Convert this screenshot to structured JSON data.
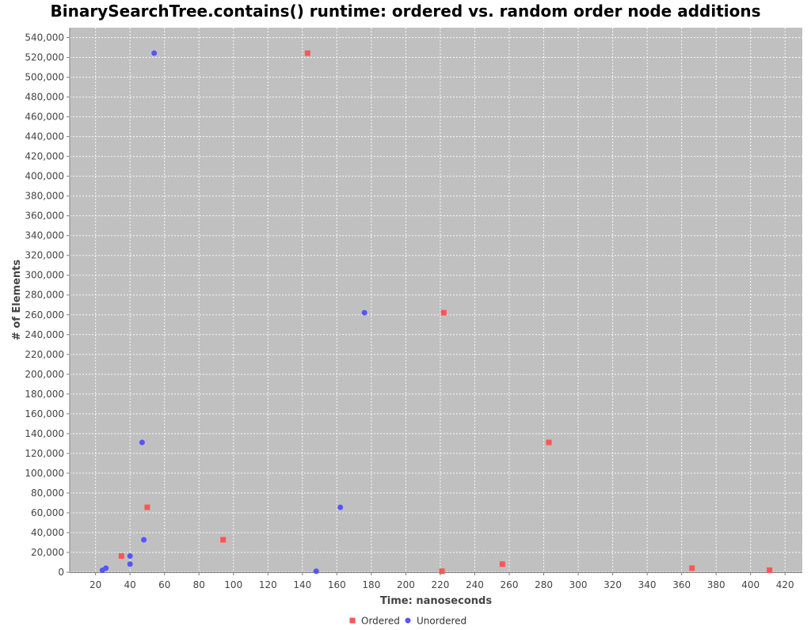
{
  "chart_data": {
    "type": "scatter",
    "title": "BinarySearchTree.contains() runtime: ordered vs. random order node additions",
    "xlabel": "Time: nanoseconds",
    "ylabel": "# of Elements",
    "xlim": [
      5,
      430
    ],
    "ylim": [
      0,
      550000
    ],
    "xticks": [
      20,
      40,
      60,
      80,
      100,
      120,
      140,
      160,
      180,
      200,
      220,
      240,
      260,
      280,
      300,
      320,
      340,
      360,
      380,
      400,
      420
    ],
    "yticks": [
      0,
      20000,
      40000,
      60000,
      80000,
      100000,
      120000,
      140000,
      160000,
      180000,
      200000,
      220000,
      240000,
      260000,
      280000,
      300000,
      320000,
      340000,
      360000,
      380000,
      400000,
      420000,
      440000,
      460000,
      480000,
      500000,
      520000,
      540000
    ],
    "ytick_labels": [
      "0",
      "20,000",
      "40,000",
      "60,000",
      "80,000",
      "100,000",
      "120,000",
      "140,000",
      "160,000",
      "180,000",
      "200,000",
      "220,000",
      "240,000",
      "260,000",
      "280,000",
      "300,000",
      "320,000",
      "340,000",
      "360,000",
      "380,000",
      "400,000",
      "420,000",
      "440,000",
      "460,000",
      "480,000",
      "500,000",
      "520,000",
      "540,000"
    ],
    "grid": true,
    "legend_position": "bottom",
    "series": [
      {
        "name": "Ordered",
        "marker": "square",
        "color": "#ff5555",
        "points": [
          {
            "x": 35,
            "y": 16384
          },
          {
            "x": 50,
            "y": 65536
          },
          {
            "x": 94,
            "y": 32768
          },
          {
            "x": 143,
            "y": 524288
          },
          {
            "x": 221,
            "y": 1024
          },
          {
            "x": 222,
            "y": 262144
          },
          {
            "x": 256,
            "y": 8192
          },
          {
            "x": 283,
            "y": 131072
          },
          {
            "x": 366,
            "y": 4096
          },
          {
            "x": 411,
            "y": 2048
          }
        ]
      },
      {
        "name": "Unordered",
        "marker": "circle",
        "color": "#5555ff",
        "points": [
          {
            "x": 24,
            "y": 2048
          },
          {
            "x": 26,
            "y": 4096
          },
          {
            "x": 40,
            "y": 8192
          },
          {
            "x": 40,
            "y": 16384
          },
          {
            "x": 47,
            "y": 131072
          },
          {
            "x": 48,
            "y": 32768
          },
          {
            "x": 54,
            "y": 524288
          },
          {
            "x": 148,
            "y": 1024
          },
          {
            "x": 162,
            "y": 65536
          },
          {
            "x": 176,
            "y": 262144
          }
        ]
      }
    ]
  }
}
